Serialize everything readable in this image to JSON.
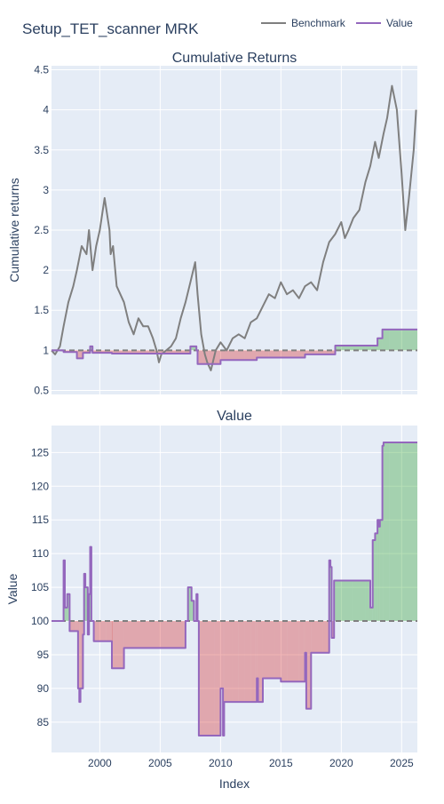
{
  "title": "Setup_TET_scanner MRK",
  "legend": [
    {
      "name": "Benchmark",
      "color": "#7f7f7f"
    },
    {
      "name": "Value",
      "color": "#9467bd"
    }
  ],
  "colors": {
    "plot_bg": "#e5ecf6",
    "grid": "#ffffff",
    "benchmark": "#7f7f7f",
    "value": "#9467bd",
    "gain_fill": "rgba(44,160,44,0.35)",
    "loss_fill": "rgba(214,39,40,0.35)",
    "baseline": "#7f7f7f"
  },
  "chart_data": [
    {
      "type": "line",
      "title": "Cumulative Returns",
      "xlabel": "",
      "ylabel": "Cumulative returns",
      "xlim": [
        1996.0,
        2026.3
      ],
      "ylim": [
        0.45,
        4.55
      ],
      "yticks": [
        0.5,
        1,
        1.5,
        2,
        2.5,
        3,
        3.5,
        4,
        4.5
      ],
      "ytick_labels": [
        "0.5",
        "1",
        "1.5",
        "2",
        "2.5",
        "3",
        "3.5",
        "4",
        "4.5"
      ],
      "xticks": [
        2000,
        2005,
        2010,
        2015,
        2020,
        2025
      ],
      "xtick_labels": [
        "",
        "",
        "",
        "",
        "",
        ""
      ],
      "baseline": 1,
      "grid": true,
      "legend_position": "top-right",
      "series": [
        {
          "name": "Benchmark",
          "x": [
            1996.0,
            1996.3,
            1996.7,
            1997.0,
            1997.4,
            1997.8,
            1998.1,
            1998.5,
            1998.9,
            1999.1,
            1999.4,
            1999.7,
            2000.0,
            2000.4,
            2000.8,
            2000.9,
            2001.1,
            2001.4,
            2001.7,
            2002.0,
            2002.4,
            2002.8,
            2003.2,
            2003.6,
            2004.0,
            2004.4,
            2004.7,
            2004.9,
            2005.1,
            2005.5,
            2005.9,
            2006.3,
            2006.7,
            2007.1,
            2007.5,
            2007.9,
            2008.1,
            2008.4,
            2008.7,
            2008.9,
            2009.2,
            2009.6,
            2010.0,
            2010.5,
            2011.0,
            2011.5,
            2012.0,
            2012.5,
            2013.0,
            2013.5,
            2014.0,
            2014.5,
            2015.0,
            2015.5,
            2016.0,
            2016.5,
            2017.0,
            2017.5,
            2018.0,
            2018.5,
            2019.0,
            2019.5,
            2020.0,
            2020.3,
            2020.6,
            2021.0,
            2021.5,
            2022.0,
            2022.4,
            2022.8,
            2023.1,
            2023.5,
            2023.8,
            2024.2,
            2024.6,
            2025.0,
            2025.3,
            2025.6,
            2026.0,
            2026.2
          ],
          "y": [
            1.0,
            0.95,
            1.05,
            1.3,
            1.6,
            1.8,
            2.0,
            2.3,
            2.2,
            2.5,
            2.0,
            2.3,
            2.5,
            2.9,
            2.5,
            2.2,
            2.3,
            1.8,
            1.7,
            1.6,
            1.35,
            1.2,
            1.4,
            1.3,
            1.3,
            1.15,
            1.0,
            0.85,
            0.95,
            1.0,
            1.05,
            1.15,
            1.4,
            1.6,
            1.85,
            2.1,
            1.7,
            1.2,
            0.95,
            0.85,
            0.75,
            1.0,
            1.1,
            1.0,
            1.15,
            1.2,
            1.15,
            1.35,
            1.4,
            1.55,
            1.7,
            1.65,
            1.85,
            1.7,
            1.75,
            1.65,
            1.8,
            1.85,
            1.75,
            2.1,
            2.35,
            2.45,
            2.6,
            2.4,
            2.5,
            2.65,
            2.75,
            3.1,
            3.3,
            3.6,
            3.4,
            3.7,
            3.9,
            4.3,
            4.0,
            3.2,
            2.5,
            2.9,
            3.5,
            4.0
          ]
        },
        {
          "name": "Value",
          "x": [
            1996.0,
            1996.8,
            1997.0,
            1997.5,
            1998.0,
            1998.1,
            1998.5,
            1998.6,
            1999.0,
            1999.2,
            1999.4,
            2000.0,
            2001.0,
            2005.0,
            2006.0,
            2007.0,
            2007.5,
            2008.0,
            2008.1,
            2009.0,
            2009.8,
            2010.0,
            2012.0,
            2013.0,
            2014.0,
            2015.0,
            2016.0,
            2017.0,
            2018.0,
            2019.0,
            2019.5,
            2020.0,
            2022.0,
            2022.5,
            2023.0,
            2023.4,
            2024.0,
            2025.0,
            2026.3
          ],
          "y": [
            1.0,
            1.0,
            0.98,
            0.98,
            0.98,
            0.9,
            0.9,
            0.97,
            0.97,
            1.05,
            0.97,
            0.97,
            0.96,
            0.96,
            0.96,
            0.96,
            1.05,
            1.0,
            0.83,
            0.83,
            0.83,
            0.88,
            0.88,
            0.91,
            0.91,
            0.91,
            0.91,
            0.95,
            0.95,
            0.95,
            1.06,
            1.06,
            1.06,
            1.06,
            1.15,
            1.26,
            1.26,
            1.26,
            1.26
          ]
        }
      ]
    },
    {
      "type": "line",
      "title": "Value",
      "xlabel": "Index",
      "ylabel": "Value",
      "xlim": [
        1996.0,
        2026.3
      ],
      "ylim": [
        80.5,
        129
      ],
      "yticks": [
        85,
        90,
        95,
        100,
        105,
        110,
        115,
        120,
        125
      ],
      "ytick_labels": [
        "85",
        "90",
        "95",
        "100",
        "105",
        "110",
        "115",
        "120",
        "125"
      ],
      "xticks": [
        2000,
        2005,
        2010,
        2015,
        2020,
        2025
      ],
      "xtick_labels": [
        "2000",
        "2005",
        "2010",
        "2015",
        "2020",
        "2025"
      ],
      "baseline": 100,
      "grid": true,
      "series": [
        {
          "name": "Value",
          "x": [
            1996.0,
            1996.9,
            1997.0,
            1997.1,
            1997.3,
            1997.5,
            1998.0,
            1998.2,
            1998.3,
            1998.4,
            1998.6,
            1998.7,
            1998.8,
            1999.0,
            1999.1,
            1999.2,
            1999.3,
            1999.5,
            2000.5,
            2001.0,
            2001.0,
            2002.0,
            2005.0,
            2006.0,
            2006.9,
            2007.0,
            2007.1,
            2007.3,
            2007.6,
            2007.8,
            2008.0,
            2008.1,
            2008.2,
            2009.5,
            2009.9,
            2010.0,
            2010.2,
            2010.3,
            2011.0,
            2011.5,
            2012.0,
            2012.5,
            2012.9,
            2013.0,
            2013.1,
            2013.5,
            2014.5,
            2014.9,
            2015.0,
            2015.1,
            2015.5,
            2016.5,
            2016.9,
            2017.0,
            2017.1,
            2017.5,
            2018.5,
            2018.9,
            2019.0,
            2019.1,
            2019.2,
            2019.4,
            2019.5,
            2020.0,
            2021.0,
            2022.0,
            2022.4,
            2022.6,
            2022.8,
            2023.0,
            2023.1,
            2023.2,
            2023.4,
            2023.5,
            2024.0,
            2025.0,
            2026.3
          ],
          "y": [
            100,
            100,
            109,
            102,
            104,
            98.5,
            98.5,
            90,
            88,
            90,
            98,
            107,
            105,
            98,
            104,
            111,
            100,
            97,
            97,
            97,
            93,
            96,
            96,
            96,
            96,
            96,
            100,
            105,
            103,
            100,
            104,
            100,
            83,
            83,
            83,
            90,
            83,
            88,
            88,
            88,
            88,
            88,
            88,
            91.5,
            88,
            91.5,
            91.5,
            91.5,
            91,
            91,
            91,
            91,
            91,
            95.3,
            87,
            95.3,
            95.3,
            95.3,
            109,
            108,
            97.5,
            106,
            106,
            106,
            106,
            106,
            102,
            112,
            113,
            115,
            114,
            115,
            126,
            126.5,
            126.5,
            126.5,
            126.5
          ]
        }
      ]
    }
  ]
}
